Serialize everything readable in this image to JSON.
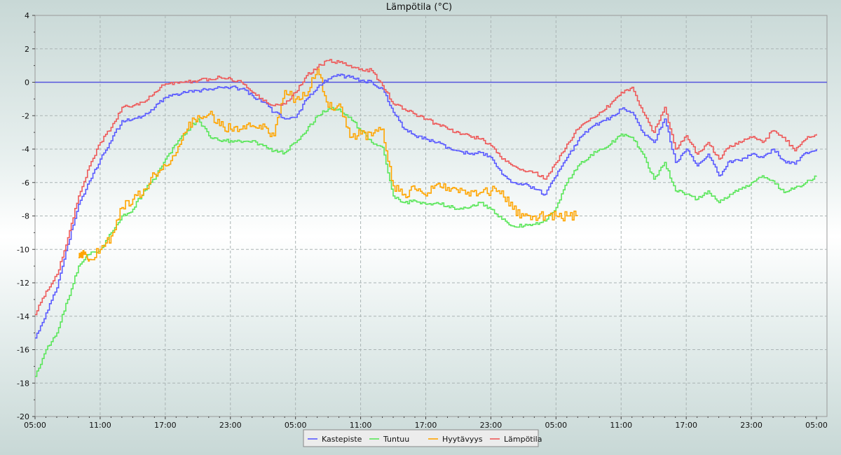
{
  "chart_data": {
    "type": "line",
    "title": "Lämpötila (°C)",
    "ylim": [
      -20,
      4
    ],
    "yticks": [
      -20,
      -18,
      -16,
      -14,
      -12,
      -10,
      -8,
      -6,
      -4,
      -2,
      0,
      2,
      4
    ],
    "xticks": [
      "05:00",
      "11:00",
      "17:00",
      "23:00",
      "05:00",
      "11:00",
      "17:00",
      "23:00",
      "05:00",
      "11:00",
      "17:00",
      "23:00",
      "05:00"
    ],
    "xrange_hours": [
      0,
      72
    ],
    "grid": true,
    "legend_position": "bottom-center",
    "reference_line": {
      "y": 0,
      "color": "#5555dd"
    },
    "series": [
      {
        "name": "Kastepiste",
        "color": "#5a5aff",
        "x": [
          0,
          1,
          2,
          3,
          4,
          5,
          6,
          7,
          8,
          9,
          10,
          11,
          12,
          13,
          14,
          15,
          16,
          17,
          18,
          19,
          20,
          21,
          22,
          23,
          24,
          25,
          26,
          27,
          28,
          29,
          30,
          31,
          32,
          33,
          34,
          35,
          36,
          37,
          38,
          39,
          40,
          41,
          42,
          43,
          44,
          45,
          46,
          47,
          48,
          49,
          50,
          51,
          52,
          53,
          54,
          55,
          56,
          57,
          58,
          59,
          60,
          61,
          62,
          63,
          64,
          65,
          66,
          67,
          68,
          69,
          70,
          71,
          72
        ],
        "values": [
          -15.3,
          -13.8,
          -12.3,
          -9.7,
          -7.3,
          -5.9,
          -4.6,
          -3.5,
          -2.3,
          -2.2,
          -2.0,
          -1.5,
          -0.9,
          -0.7,
          -0.6,
          -0.5,
          -0.4,
          -0.3,
          -0.3,
          -0.4,
          -0.8,
          -1.2,
          -1.8,
          -2.2,
          -2.1,
          -1.0,
          -0.3,
          0.2,
          0.4,
          0.3,
          0.1,
          0.0,
          -0.4,
          -1.8,
          -2.8,
          -3.2,
          -3.4,
          -3.6,
          -3.9,
          -4.1,
          -4.3,
          -4.2,
          -4.5,
          -5.5,
          -6.0,
          -6.1,
          -6.4,
          -6.7,
          -5.6,
          -4.5,
          -3.5,
          -2.8,
          -2.4,
          -2.1,
          -1.6,
          -1.8,
          -3.0,
          -3.6,
          -2.2,
          -4.8,
          -4.0,
          -5.0,
          -4.3,
          -5.6,
          -4.7,
          -4.7,
          -4.3,
          -4.5,
          -4.0,
          -4.7,
          -4.9,
          -4.2,
          -4.0
        ]
      },
      {
        "name": "Tuntuu",
        "color": "#5ae65a",
        "x": [
          0,
          1,
          2,
          3,
          4,
          5,
          6,
          7,
          8,
          9,
          10,
          11,
          12,
          13,
          14,
          15,
          16,
          17,
          18,
          19,
          20,
          21,
          22,
          23,
          24,
          25,
          26,
          27,
          28,
          29,
          30,
          31,
          32,
          33,
          34,
          35,
          36,
          37,
          38,
          39,
          40,
          41,
          42,
          43,
          44,
          45,
          46,
          47,
          48,
          49,
          50,
          51,
          52,
          53,
          54,
          55,
          56,
          57,
          58,
          59,
          60,
          61,
          62,
          63,
          64,
          65,
          66,
          67,
          68,
          69,
          70,
          71,
          72
        ],
        "values": [
          -17.6,
          -16.0,
          -15.0,
          -13.0,
          -11.0,
          -10.3,
          -10.0,
          -9.0,
          -8.0,
          -7.6,
          -6.5,
          -5.8,
          -4.6,
          -3.7,
          -2.9,
          -2.2,
          -3.2,
          -3.5,
          -3.5,
          -3.6,
          -3.5,
          -3.8,
          -4.1,
          -4.2,
          -3.6,
          -2.9,
          -2.0,
          -1.6,
          -1.6,
          -2.1,
          -2.9,
          -3.6,
          -3.9,
          -6.8,
          -7.2,
          -7.1,
          -7.3,
          -7.2,
          -7.4,
          -7.6,
          -7.5,
          -7.2,
          -7.6,
          -8.2,
          -8.6,
          -8.6,
          -8.5,
          -8.3,
          -7.5,
          -6.0,
          -5.0,
          -4.5,
          -4.0,
          -3.7,
          -3.1,
          -3.3,
          -4.3,
          -5.8,
          -4.8,
          -6.5,
          -6.7,
          -7.0,
          -6.5,
          -7.2,
          -6.7,
          -6.4,
          -6.0,
          -5.6,
          -5.9,
          -6.6,
          -6.3,
          -6.0,
          -5.6
        ]
      },
      {
        "name": "Hyytävyys",
        "color": "#ffa500",
        "x": [
          4,
          4.5,
          5,
          6,
          7,
          8,
          9,
          10,
          11,
          12,
          13,
          14,
          15,
          16,
          17,
          18,
          19,
          20,
          21,
          22,
          23,
          24,
          25,
          26,
          27,
          28,
          29,
          30,
          31,
          32,
          33,
          34,
          35,
          36,
          37,
          38,
          39,
          40,
          41,
          42,
          43,
          44,
          45,
          46,
          47,
          48,
          49,
          50
        ],
        "values": [
          -10.5,
          -10.3,
          -10.6,
          -10.0,
          -9.2,
          -7.5,
          -7.0,
          -6.4,
          -5.5,
          -5.0,
          -4.2,
          -2.8,
          -2.0,
          -1.9,
          -2.6,
          -2.8,
          -2.8,
          -2.6,
          -2.5,
          -3.2,
          -0.5,
          -1.0,
          -0.8,
          0.8,
          -1.5,
          -1.3,
          -3.3,
          -3.1,
          -3.2,
          -2.8,
          -6.2,
          -6.7,
          -6.4,
          -6.8,
          -6.1,
          -6.3,
          -6.6,
          -6.8,
          -6.6,
          -6.5,
          -6.5,
          -7.6,
          -8.0,
          -8.0,
          -8.0,
          -8.0,
          -8.0,
          -8.0
        ],
        "visible_until_hour": 48
      },
      {
        "name": "Lämpötila",
        "color": "#ee5a5a",
        "x": [
          0,
          1,
          2,
          3,
          4,
          5,
          6,
          7,
          8,
          9,
          10,
          11,
          12,
          13,
          14,
          15,
          16,
          17,
          18,
          19,
          20,
          21,
          22,
          23,
          24,
          25,
          26,
          27,
          28,
          29,
          30,
          31,
          32,
          33,
          34,
          35,
          36,
          37,
          38,
          39,
          40,
          41,
          42,
          43,
          44,
          45,
          46,
          47,
          48,
          49,
          50,
          51,
          52,
          53,
          54,
          55,
          56,
          57,
          58,
          59,
          60,
          61,
          62,
          63,
          64,
          65,
          66,
          67,
          68,
          69,
          70,
          71,
          72
        ],
        "values": [
          -13.9,
          -12.5,
          -11.5,
          -9.3,
          -6.8,
          -5.0,
          -3.6,
          -2.7,
          -1.5,
          -1.4,
          -1.2,
          -0.6,
          -0.1,
          0.0,
          0.0,
          0.1,
          0.2,
          0.3,
          0.2,
          0.0,
          -0.6,
          -1.1,
          -1.4,
          -1.3,
          -0.6,
          0.4,
          0.9,
          1.3,
          1.2,
          1.0,
          0.8,
          0.7,
          -0.2,
          -1.3,
          -1.6,
          -1.9,
          -2.2,
          -2.5,
          -2.8,
          -3.0,
          -3.2,
          -3.4,
          -3.8,
          -4.6,
          -5.0,
          -5.3,
          -5.4,
          -5.8,
          -4.8,
          -3.7,
          -2.8,
          -2.3,
          -1.8,
          -1.3,
          -0.6,
          -0.3,
          -1.8,
          -3.0,
          -1.5,
          -4.0,
          -3.2,
          -4.3,
          -3.6,
          -4.6,
          -3.8,
          -3.6,
          -3.3,
          -3.6,
          -2.9,
          -3.3,
          -4.1,
          -3.4,
          -3.1
        ]
      }
    ]
  }
}
